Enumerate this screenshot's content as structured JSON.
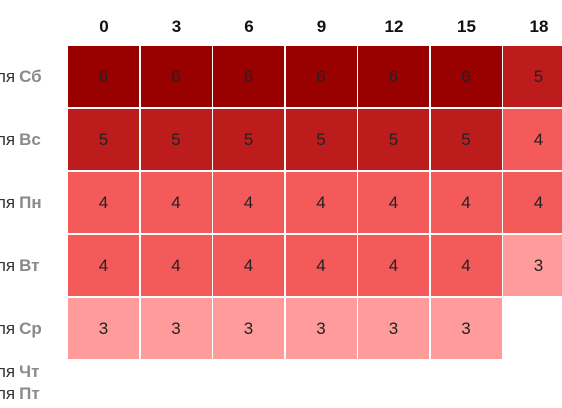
{
  "chart_data": {
    "type": "heatmap",
    "columns": [
      "0",
      "3",
      "6",
      "9",
      "12",
      "15",
      "18"
    ],
    "row_prefix": "ля",
    "rows": [
      "Сб",
      "Вс",
      "Пн",
      "Вт",
      "Ср",
      "Чт",
      "Пт"
    ],
    "values": [
      [
        6,
        6,
        6,
        6,
        6,
        6,
        5
      ],
      [
        5,
        5,
        5,
        5,
        5,
        5,
        4
      ],
      [
        4,
        4,
        4,
        4,
        4,
        4,
        4
      ],
      [
        4,
        4,
        4,
        4,
        4,
        4,
        3
      ],
      [
        3,
        3,
        3,
        3,
        3,
        3,
        null
      ],
      [
        null,
        null,
        null,
        null,
        null,
        null,
        null
      ],
      [
        null,
        null,
        null,
        null,
        null,
        null,
        null
      ]
    ],
    "color_scale": {
      "3": "#ff9b9b",
      "4": "#f45a5a",
      "5": "#bd1c1c",
      "6": "#990000"
    }
  }
}
